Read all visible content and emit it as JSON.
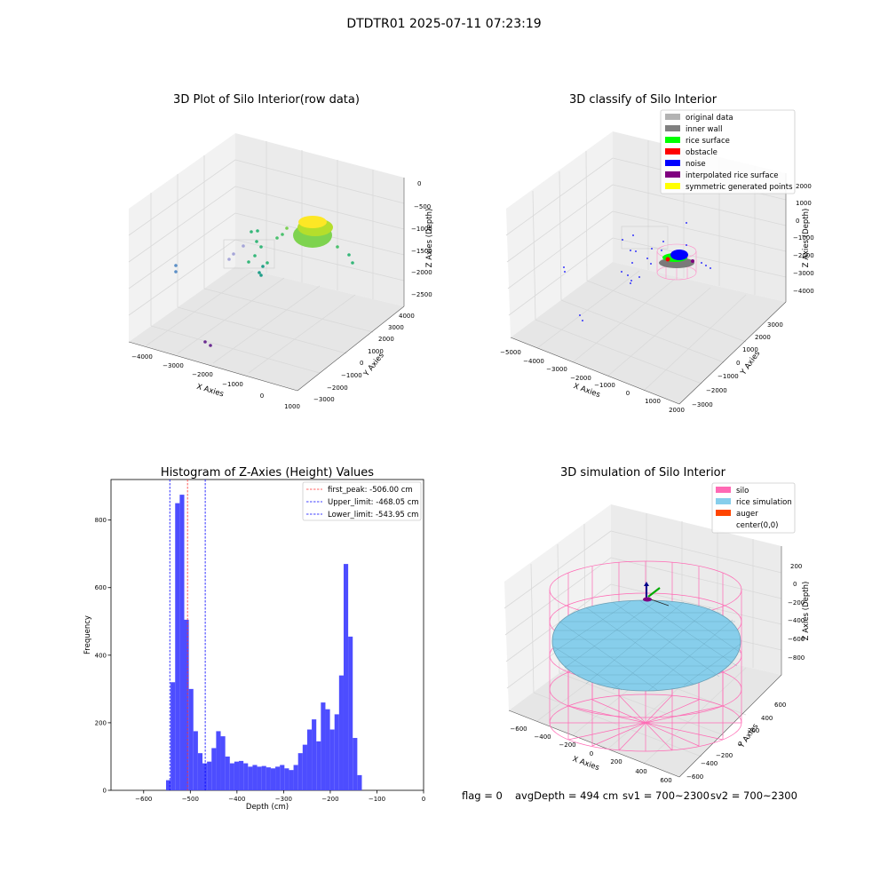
{
  "suptitle": "DTDTR01 2025-07-11 07:23:19",
  "footer": {
    "flag": "flag = 0",
    "avg_depth": "avgDepth = 494 cm",
    "sv1": "sv1 = 700~2300",
    "sv2": "sv2 = 700~2300"
  },
  "colors": {
    "histogram": "#4d4dff",
    "first_peak_line": "#ff3333",
    "limit_lines": "#0000ff",
    "silo_wire": "#ff69b4",
    "rice_sim": "#87ceeb",
    "auger": "#ff4500",
    "pane": "#f2f2f2",
    "grid": "#d9d9d9"
  },
  "chart_data": [
    {
      "type": "scatter",
      "projection": "3d",
      "title": "3D Plot of Silo Interior(row data)",
      "xlabel": "X Axies",
      "ylabel": "Y Axies",
      "zlabel": "Z Axies (Depth)",
      "x_ticks": [
        "−4000",
        "−3000",
        "−2000",
        "−1000",
        "0",
        "1000"
      ],
      "y_ticks": [
        "−3000",
        "−2000",
        "−1000",
        "0",
        "1000",
        "2000",
        "3000",
        "4000"
      ],
      "z_ticks": [
        "0",
        "−500",
        "−1000",
        "−1500",
        "−2000",
        "−2500"
      ],
      "colormap": "viridis",
      "note_points": "dense surface cluster near depth −1000 with sparse outliers"
    },
    {
      "type": "scatter",
      "projection": "3d",
      "title": "3D classify of Silo Interior",
      "xlabel": "X Axies",
      "ylabel": "Y Axies",
      "zlabel": "Z Axies (Depth)",
      "x_ticks": [
        "−5000",
        "−4000",
        "−3000",
        "−2000",
        "−1000",
        "0",
        "1000",
        "2000"
      ],
      "y_ticks": [
        "−3000",
        "−2000",
        "−1000",
        "0",
        "1000",
        "2000",
        "3000"
      ],
      "z_ticks": [
        "2000",
        "1000",
        "0",
        "−1000",
        "−2000",
        "−3000",
        "−4000"
      ],
      "z_ticks_hidden_by_legend": [
        "2000"
      ],
      "legend": [
        {
          "label": "original data",
          "color": "#b3b3b3"
        },
        {
          "label": "inner wall",
          "color": "#808080"
        },
        {
          "label": "rice surface",
          "color": "#00ff00"
        },
        {
          "label": "obstacle",
          "color": "#ff0000"
        },
        {
          "label": "noise",
          "color": "#0000ff"
        },
        {
          "label": "interpolated rice surface",
          "color": "#800080"
        },
        {
          "label": "symmetric generated points",
          "color": "#ffff00"
        }
      ]
    },
    {
      "type": "bar",
      "title": "Histogram of Z-Axies (Height) Values",
      "xlabel": "Depth (cm)",
      "ylabel": "Frequency",
      "xlim": [
        -670,
        0
      ],
      "ylim": [
        0,
        920
      ],
      "x_ticks": [
        -600,
        -500,
        -400,
        -300,
        -200,
        -100,
        0
      ],
      "x_tick_labels": [
        "−600",
        "−500",
        "−400",
        "−300",
        "−200",
        "−100",
        "0"
      ],
      "y_ticks": [
        0,
        200,
        400,
        600,
        800
      ],
      "bin_width": 9.76,
      "bin_start": -552,
      "values": [
        30,
        320,
        850,
        875,
        505,
        300,
        175,
        110,
        80,
        85,
        125,
        175,
        160,
        100,
        80,
        85,
        87,
        80,
        70,
        75,
        70,
        72,
        68,
        65,
        70,
        75,
        65,
        60,
        75,
        110,
        135,
        180,
        210,
        145,
        260,
        240,
        180,
        225,
        340,
        670,
        455,
        155,
        45
      ],
      "vlines": [
        {
          "x": -506.0,
          "label": "first_peak: -506.00 cm",
          "color": "#ff3333"
        },
        {
          "x": -468.05,
          "label": "Upper_limit: -468.05 cm",
          "color": "#0000ff"
        },
        {
          "x": -543.95,
          "label": "Lower_limit: -543.95 cm",
          "color": "#0000ff"
        }
      ]
    },
    {
      "type": "surface",
      "projection": "3d",
      "title": "3D simulation of Silo Interior",
      "xlabel": "X Axies",
      "ylabel": "Y Axies",
      "zlabel": "Z Axies (Depth)",
      "x_ticks": [
        "−600",
        "−400",
        "−200",
        "0",
        "200",
        "400",
        "600"
      ],
      "y_ticks": [
        "−600",
        "−400",
        "−200",
        "0",
        "200",
        "400",
        "600"
      ],
      "z_ticks": [
        "200",
        "0",
        "−200",
        "−400",
        "−600",
        "−800"
      ],
      "legend": [
        {
          "label": "silo",
          "color": "#ff69b4"
        },
        {
          "label": "rice simulation",
          "color": "#87ceeb"
        },
        {
          "label": "auger",
          "color": "#ff4500"
        },
        {
          "label": "center(0,0)",
          "color": ""
        }
      ]
    }
  ]
}
